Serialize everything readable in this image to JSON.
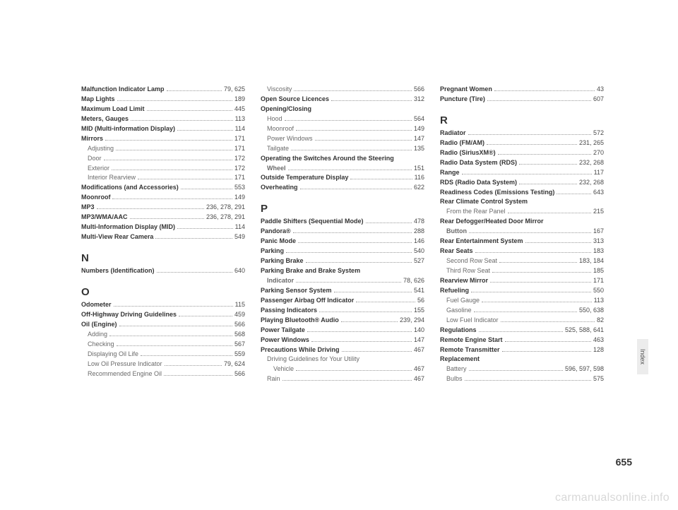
{
  "pageNumber": "655",
  "sideTab": "Index",
  "watermark": "carmanualsonline.info",
  "columns": [
    {
      "items": [
        {
          "type": "entry",
          "label": "Malfunction Indicator Lamp",
          "bold": true,
          "pages": "79, 625"
        },
        {
          "type": "entry",
          "label": "Map Lights",
          "bold": true,
          "pages": "189"
        },
        {
          "type": "entry",
          "label": "Maximum Load Limit",
          "bold": true,
          "pages": "445"
        },
        {
          "type": "entry",
          "label": "Meters, Gauges",
          "bold": true,
          "pages": "113"
        },
        {
          "type": "entry",
          "label": "MID (Multi-information Display)",
          "bold": true,
          "pages": "114"
        },
        {
          "type": "entry",
          "label": "Mirrors",
          "bold": true,
          "pages": "171"
        },
        {
          "type": "entry",
          "label": "Adjusting",
          "sub": true,
          "pages": "171"
        },
        {
          "type": "entry",
          "label": "Door",
          "sub": true,
          "pages": "172"
        },
        {
          "type": "entry",
          "label": "Exterior",
          "sub": true,
          "pages": "172"
        },
        {
          "type": "entry",
          "label": "Interior Rearview",
          "sub": true,
          "pages": "171"
        },
        {
          "type": "entry",
          "label": "Modifications (and Accessories)",
          "bold": true,
          "pages": "553"
        },
        {
          "type": "entry",
          "label": "Moonroof",
          "bold": true,
          "pages": "149"
        },
        {
          "type": "entry",
          "label": "MP3",
          "bold": true,
          "pages": "236, 278, 291"
        },
        {
          "type": "entry",
          "label": "MP3/WMA/AAC",
          "bold": true,
          "pages": "236, 278, 291"
        },
        {
          "type": "entry",
          "label": "Multi-Information Display (MID)",
          "bold": true,
          "pages": "114"
        },
        {
          "type": "entry",
          "label": "Multi-View Rear Camera",
          "bold": true,
          "pages": "549"
        },
        {
          "type": "letter",
          "text": "N"
        },
        {
          "type": "entry",
          "label": "Numbers (Identification)",
          "bold": true,
          "pages": "640"
        },
        {
          "type": "letter",
          "text": "O"
        },
        {
          "type": "entry",
          "label": "Odometer",
          "bold": true,
          "pages": "115"
        },
        {
          "type": "entry",
          "label": "Off-Highway Driving Guidelines",
          "bold": true,
          "pages": "459"
        },
        {
          "type": "entry",
          "label": "Oil (Engine)",
          "bold": true,
          "pages": "566"
        },
        {
          "type": "entry",
          "label": "Adding",
          "sub": true,
          "pages": "568"
        },
        {
          "type": "entry",
          "label": "Checking",
          "sub": true,
          "pages": "567"
        },
        {
          "type": "entry",
          "label": "Displaying Oil Life",
          "sub": true,
          "pages": "559"
        },
        {
          "type": "entry",
          "label": "Low Oil Pressure Indicator",
          "sub": true,
          "pages": "79, 624"
        },
        {
          "type": "entry",
          "label": "Recommended Engine Oil",
          "sub": true,
          "pages": "566"
        }
      ]
    },
    {
      "items": [
        {
          "type": "entry",
          "label": "Viscosity",
          "sub": true,
          "pages": "566"
        },
        {
          "type": "entry",
          "label": "Open Source Licences",
          "bold": true,
          "pages": "312"
        },
        {
          "type": "entry",
          "label": "Opening/Closing",
          "bold": true,
          "pages": ""
        },
        {
          "type": "entry",
          "label": "Hood",
          "sub": true,
          "pages": "564"
        },
        {
          "type": "entry",
          "label": "Moonroof",
          "sub": true,
          "pages": "149"
        },
        {
          "type": "entry",
          "label": "Power Windows",
          "sub": true,
          "pages": "147"
        },
        {
          "type": "entry",
          "label": "Tailgate",
          "sub": true,
          "pages": "135"
        },
        {
          "type": "entry",
          "label": "Operating the Switches Around the Steering",
          "bold": true,
          "pages": "",
          "cont": true
        },
        {
          "type": "entry",
          "label": "Wheel",
          "bold": true,
          "sub": true,
          "pages": "151"
        },
        {
          "type": "entry",
          "label": "Outside Temperature Display",
          "bold": true,
          "pages": "116"
        },
        {
          "type": "entry",
          "label": "Overheating",
          "bold": true,
          "pages": "622"
        },
        {
          "type": "letter",
          "text": "P"
        },
        {
          "type": "entry",
          "label": "Paddle Shifters (Sequential Mode)",
          "bold": true,
          "pages": "478"
        },
        {
          "type": "entry",
          "label": "Pandora®",
          "bold": true,
          "pages": "288"
        },
        {
          "type": "entry",
          "label": "Panic Mode",
          "bold": true,
          "pages": "146"
        },
        {
          "type": "entry",
          "label": "Parking",
          "bold": true,
          "pages": "540"
        },
        {
          "type": "entry",
          "label": "Parking Brake",
          "bold": true,
          "pages": "527"
        },
        {
          "type": "entry",
          "label": "Parking Brake and Brake System",
          "bold": true,
          "pages": "",
          "cont": true
        },
        {
          "type": "entry",
          "label": "Indicator",
          "bold": true,
          "sub": true,
          "pages": "78, 626"
        },
        {
          "type": "entry",
          "label": "Parking Sensor System",
          "bold": true,
          "pages": "541"
        },
        {
          "type": "entry",
          "label": "Passenger Airbag Off Indicator",
          "bold": true,
          "pages": "56"
        },
        {
          "type": "entry",
          "label": "Passing Indicators",
          "bold": true,
          "pages": "155"
        },
        {
          "type": "entry",
          "label": "Playing Bluetooth® Audio",
          "bold": true,
          "pages": "239, 294"
        },
        {
          "type": "entry",
          "label": "Power Tailgate",
          "bold": true,
          "pages": "140"
        },
        {
          "type": "entry",
          "label": "Power Windows",
          "bold": true,
          "pages": "147"
        },
        {
          "type": "entry",
          "label": "Precautions While Driving",
          "bold": true,
          "pages": "467"
        },
        {
          "type": "entry",
          "label": "Driving Guidelines for Your Utility",
          "sub": true,
          "pages": "",
          "cont": true
        },
        {
          "type": "entry",
          "label": "Vehicle",
          "sub": true,
          "sub2": true,
          "pages": "467"
        },
        {
          "type": "entry",
          "label": "Rain",
          "sub": true,
          "pages": "467"
        }
      ]
    },
    {
      "items": [
        {
          "type": "entry",
          "label": "Pregnant Women",
          "bold": true,
          "pages": "43"
        },
        {
          "type": "entry",
          "label": "Puncture (Tire)",
          "bold": true,
          "pages": "607"
        },
        {
          "type": "letter",
          "text": "R"
        },
        {
          "type": "entry",
          "label": "Radiator",
          "bold": true,
          "pages": "572"
        },
        {
          "type": "entry",
          "label": "Radio (FM/AM)",
          "bold": true,
          "pages": "231, 265"
        },
        {
          "type": "entry",
          "label": "Radio (SiriusXM®)",
          "bold": true,
          "pages": "270"
        },
        {
          "type": "entry",
          "label": "Radio Data System (RDS)",
          "bold": true,
          "pages": "232, 268"
        },
        {
          "type": "entry",
          "label": "Range",
          "bold": true,
          "pages": "117"
        },
        {
          "type": "entry",
          "label": "RDS (Radio Data System)",
          "bold": true,
          "pages": "232, 268"
        },
        {
          "type": "entry",
          "label": "Readiness Codes (Emissions Testing)",
          "bold": true,
          "pages": "643"
        },
        {
          "type": "entry",
          "label": "Rear Climate Control System",
          "bold": true,
          "pages": ""
        },
        {
          "type": "entry",
          "label": "From the Rear Panel",
          "sub": true,
          "pages": "215"
        },
        {
          "type": "entry",
          "label": "Rear Defogger/Heated Door Mirror",
          "bold": true,
          "pages": "",
          "cont": true
        },
        {
          "type": "entry",
          "label": "Button",
          "bold": true,
          "sub": true,
          "pages": "167"
        },
        {
          "type": "entry",
          "label": "Rear Entertainment System",
          "bold": true,
          "pages": "313"
        },
        {
          "type": "entry",
          "label": "Rear Seats",
          "bold": true,
          "pages": "183"
        },
        {
          "type": "entry",
          "label": "Second Row Seat",
          "sub": true,
          "pages": "183, 184"
        },
        {
          "type": "entry",
          "label": "Third Row Seat",
          "sub": true,
          "pages": "185"
        },
        {
          "type": "entry",
          "label": "Rearview Mirror",
          "bold": true,
          "pages": "171"
        },
        {
          "type": "entry",
          "label": "Refueling",
          "bold": true,
          "pages": "550"
        },
        {
          "type": "entry",
          "label": "Fuel Gauge",
          "sub": true,
          "pages": "113"
        },
        {
          "type": "entry",
          "label": "Gasoline",
          "sub": true,
          "pages": "550, 638"
        },
        {
          "type": "entry",
          "label": "Low Fuel Indicator",
          "sub": true,
          "pages": "82"
        },
        {
          "type": "entry",
          "label": "Regulations",
          "bold": true,
          "pages": "525, 588, 641"
        },
        {
          "type": "entry",
          "label": "Remote Engine Start",
          "bold": true,
          "pages": "463"
        },
        {
          "type": "entry",
          "label": "Remote Transmitter",
          "bold": true,
          "pages": "128"
        },
        {
          "type": "entry",
          "label": "Replacement",
          "bold": true,
          "pages": ""
        },
        {
          "type": "entry",
          "label": "Battery",
          "sub": true,
          "pages": "596, 597, 598"
        },
        {
          "type": "entry",
          "label": "Bulbs",
          "sub": true,
          "pages": "575"
        }
      ]
    }
  ]
}
